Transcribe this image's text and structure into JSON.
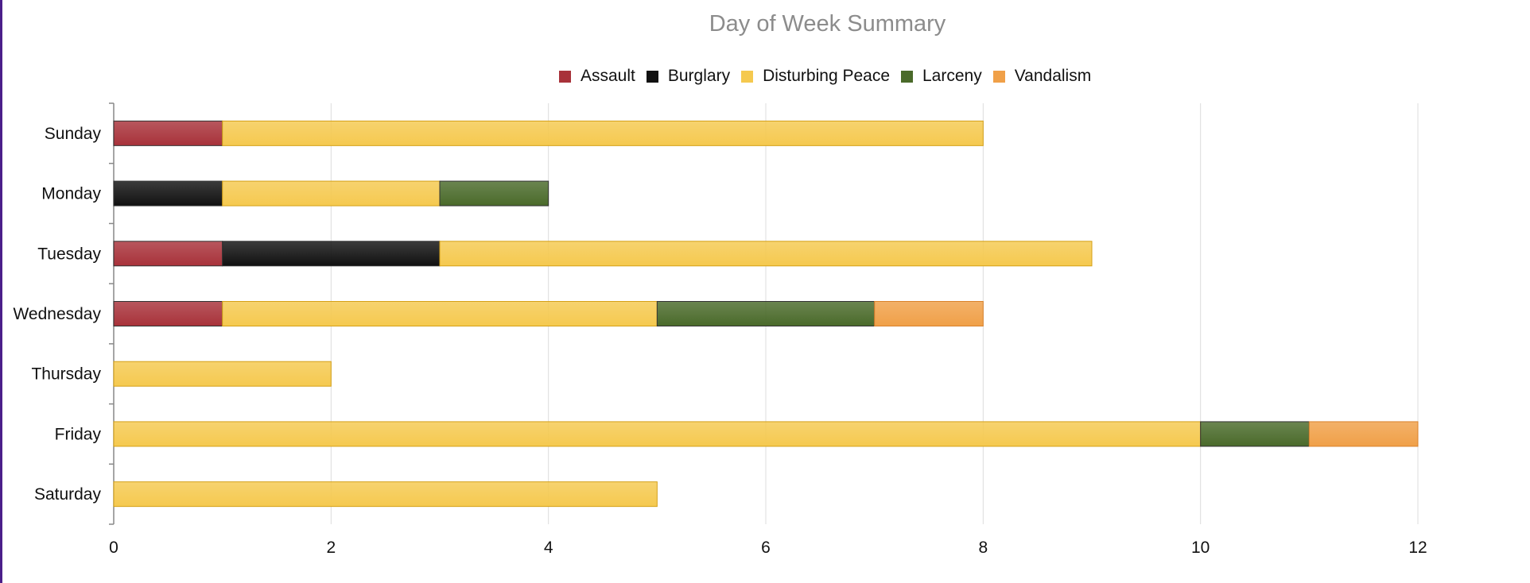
{
  "chart_data": {
    "type": "bar",
    "orientation": "horizontal",
    "stacked": true,
    "title": "Day of Week Summary",
    "xlabel": "",
    "ylabel": "",
    "xlim": [
      0,
      12
    ],
    "x_ticks": [
      0,
      2,
      4,
      6,
      8,
      10,
      12
    ],
    "grid": true,
    "legend_position": "top-center",
    "categories": [
      "Sunday",
      "Monday",
      "Tuesday",
      "Wednesday",
      "Thursday",
      "Friday",
      "Saturday"
    ],
    "series": [
      {
        "name": "Assault",
        "color": "#a8323a",
        "values": [
          1,
          0,
          1,
          1,
          0,
          0,
          0
        ]
      },
      {
        "name": "Burglary",
        "color": "#111111",
        "values": [
          0,
          1,
          2,
          0,
          0,
          0,
          0
        ]
      },
      {
        "name": "Disturbing Peace",
        "color": "#f5c94f",
        "values": [
          7,
          2,
          6,
          4,
          2,
          10,
          5
        ]
      },
      {
        "name": "Larceny",
        "color": "#4a6a2a",
        "values": [
          0,
          1,
          0,
          2,
          0,
          1,
          0
        ]
      },
      {
        "name": "Vandalism",
        "color": "#f0a048",
        "values": [
          0,
          0,
          0,
          1,
          0,
          1,
          0
        ]
      }
    ]
  }
}
